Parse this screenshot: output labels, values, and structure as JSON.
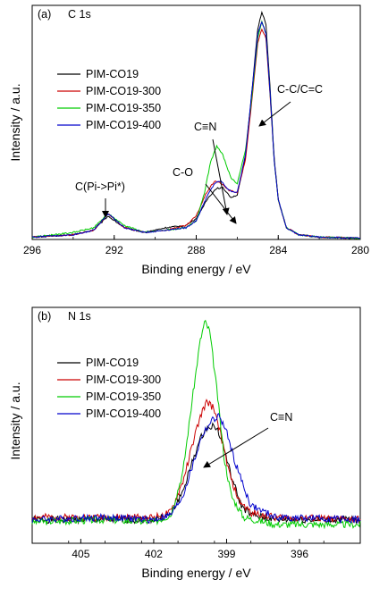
{
  "chart_data": [
    {
      "type": "line",
      "panel_label": "(a)",
      "title": "C 1s",
      "xlabel": "Binding energy / eV",
      "ylabel": "Intensity / a.u.",
      "xlim": [
        296,
        280
      ],
      "x_reversed": true,
      "yticks_shown": false,
      "ylim": [
        0,
        1
      ],
      "x_ticks": [
        296,
        292,
        288,
        284,
        280
      ],
      "x_tick_labels": [
        "296",
        "292",
        "288",
        "284",
        "280"
      ],
      "legend": {
        "position": "upper-left"
      },
      "series": [
        {
          "name": "PIM-CO19",
          "color": "#000000",
          "points": [
            [
              296,
              0.01
            ],
            [
              294,
              0.02
            ],
            [
              293,
              0.04
            ],
            [
              292.3,
              0.1
            ],
            [
              291.5,
              0.05
            ],
            [
              290.5,
              0.03
            ],
            [
              289.5,
              0.05
            ],
            [
              288.5,
              0.06
            ],
            [
              288,
              0.09
            ],
            [
              287.4,
              0.18
            ],
            [
              287,
              0.22
            ],
            [
              286.7,
              0.22
            ],
            [
              286.3,
              0.18
            ],
            [
              286,
              0.19
            ],
            [
              285.6,
              0.35
            ],
            [
              285.3,
              0.62
            ],
            [
              285,
              0.9
            ],
            [
              284.8,
              0.97
            ],
            [
              284.6,
              0.92
            ],
            [
              284.4,
              0.65
            ],
            [
              284.2,
              0.35
            ],
            [
              284,
              0.17
            ],
            [
              283.6,
              0.05
            ],
            [
              283,
              0.02
            ],
            [
              282,
              0.01
            ],
            [
              280,
              0.005
            ]
          ]
        },
        {
          "name": "PIM-CO19-300",
          "color": "#cc0000",
          "points": [
            [
              296,
              0.01
            ],
            [
              294,
              0.02
            ],
            [
              293,
              0.04
            ],
            [
              292.3,
              0.11
            ],
            [
              291.5,
              0.05
            ],
            [
              290.5,
              0.03
            ],
            [
              289.5,
              0.04
            ],
            [
              288.5,
              0.06
            ],
            [
              288,
              0.1
            ],
            [
              287.5,
              0.2
            ],
            [
              287.1,
              0.25
            ],
            [
              286.8,
              0.24
            ],
            [
              286.4,
              0.21
            ],
            [
              286,
              0.2
            ],
            [
              285.6,
              0.34
            ],
            [
              285.3,
              0.58
            ],
            [
              285,
              0.84
            ],
            [
              284.8,
              0.9
            ],
            [
              284.6,
              0.86
            ],
            [
              284.4,
              0.62
            ],
            [
              284.2,
              0.34
            ],
            [
              284,
              0.17
            ],
            [
              283.6,
              0.05
            ],
            [
              283,
              0.02
            ],
            [
              282,
              0.01
            ],
            [
              280,
              0.005
            ]
          ]
        },
        {
          "name": "PIM-CO19-350",
          "color": "#00cc00",
          "points": [
            [
              296,
              0.01
            ],
            [
              294,
              0.03
            ],
            [
              293,
              0.05
            ],
            [
              292.3,
              0.11
            ],
            [
              291.5,
              0.06
            ],
            [
              290.5,
              0.03
            ],
            [
              289.5,
              0.04
            ],
            [
              288.5,
              0.05
            ],
            [
              288,
              0.08
            ],
            [
              287.6,
              0.2
            ],
            [
              287.3,
              0.33
            ],
            [
              287,
              0.4
            ],
            [
              286.7,
              0.36
            ],
            [
              286.3,
              0.26
            ],
            [
              286,
              0.24
            ],
            [
              285.6,
              0.38
            ],
            [
              285.3,
              0.6
            ],
            [
              285,
              0.86
            ],
            [
              284.8,
              0.93
            ],
            [
              284.6,
              0.88
            ],
            [
              284.4,
              0.63
            ],
            [
              284.2,
              0.34
            ],
            [
              284,
              0.17
            ],
            [
              283.6,
              0.05
            ],
            [
              283,
              0.02
            ],
            [
              282,
              0.01
            ],
            [
              280,
              0.005
            ]
          ]
        },
        {
          "name": "PIM-CO19-400",
          "color": "#0000cc",
          "points": [
            [
              296,
              0.01
            ],
            [
              294,
              0.02
            ],
            [
              293,
              0.04
            ],
            [
              292.3,
              0.11
            ],
            [
              291.5,
              0.05
            ],
            [
              290.5,
              0.03
            ],
            [
              289.5,
              0.04
            ],
            [
              288.5,
              0.05
            ],
            [
              288,
              0.08
            ],
            [
              287.5,
              0.18
            ],
            [
              287.1,
              0.24
            ],
            [
              286.8,
              0.25
            ],
            [
              286.4,
              0.21
            ],
            [
              286,
              0.2
            ],
            [
              285.6,
              0.36
            ],
            [
              285.3,
              0.62
            ],
            [
              285,
              0.88
            ],
            [
              284.8,
              0.93
            ],
            [
              284.6,
              0.88
            ],
            [
              284.4,
              0.63
            ],
            [
              284.2,
              0.34
            ],
            [
              284,
              0.17
            ],
            [
              283.6,
              0.05
            ],
            [
              283,
              0.02
            ],
            [
              282,
              0.01
            ],
            [
              280,
              0.005
            ]
          ]
        }
      ],
      "annotations": [
        {
          "text": "C(Pi->Pi*)",
          "x": 292.3,
          "y": 0.1
        },
        {
          "text": "C-O",
          "x": 286.7,
          "y": 0.1
        },
        {
          "text": "C≡N",
          "x": 286.0,
          "y": 0.12
        },
        {
          "text": "C-C/C=C",
          "x": 284.6,
          "y": 0.55
        }
      ]
    },
    {
      "type": "line",
      "panel_label": "(b)",
      "title": "N 1s",
      "xlabel": "Binding energy / eV",
      "ylabel": "Intensity / a.u.",
      "xlim": [
        407,
        393.5
      ],
      "x_reversed": true,
      "yticks_shown": false,
      "ylim": [
        0,
        1
      ],
      "x_ticks": [
        405,
        402,
        399,
        396
      ],
      "x_tick_labels": [
        "405",
        "402",
        "399",
        "396"
      ],
      "legend": {
        "position": "upper-left"
      },
      "series": [
        {
          "name": "PIM-CO19",
          "color": "#000000",
          "points": [
            [
              407,
              0.1
            ],
            [
              404,
              0.1
            ],
            [
              402,
              0.1
            ],
            [
              401.3,
              0.12
            ],
            [
              400.8,
              0.22
            ],
            [
              400.3,
              0.38
            ],
            [
              400,
              0.46
            ],
            [
              399.7,
              0.5
            ],
            [
              399.4,
              0.49
            ],
            [
              399.1,
              0.4
            ],
            [
              398.8,
              0.28
            ],
            [
              398.4,
              0.16
            ],
            [
              398,
              0.12
            ],
            [
              397,
              0.1
            ],
            [
              393.5,
              0.1
            ]
          ]
        },
        {
          "name": "PIM-CO19-300",
          "color": "#cc0000",
          "points": [
            [
              407,
              0.11
            ],
            [
              404,
              0.11
            ],
            [
              402,
              0.11
            ],
            [
              401.3,
              0.13
            ],
            [
              400.8,
              0.26
            ],
            [
              400.3,
              0.46
            ],
            [
              400,
              0.56
            ],
            [
              399.8,
              0.6
            ],
            [
              399.5,
              0.57
            ],
            [
              399.2,
              0.44
            ],
            [
              398.9,
              0.3
            ],
            [
              398.5,
              0.18
            ],
            [
              398,
              0.13
            ],
            [
              397,
              0.11
            ],
            [
              393.5,
              0.1
            ]
          ]
        },
        {
          "name": "PIM-CO19-350",
          "color": "#00cc00",
          "points": [
            [
              407,
              0.09
            ],
            [
              404,
              0.1
            ],
            [
              402,
              0.09
            ],
            [
              401.3,
              0.12
            ],
            [
              400.8,
              0.3
            ],
            [
              400.4,
              0.62
            ],
            [
              400.1,
              0.85
            ],
            [
              399.9,
              0.94
            ],
            [
              399.7,
              0.9
            ],
            [
              399.4,
              0.65
            ],
            [
              399.1,
              0.36
            ],
            [
              398.8,
              0.2
            ],
            [
              398.3,
              0.11
            ],
            [
              397,
              0.08
            ],
            [
              393.5,
              0.08
            ]
          ]
        },
        {
          "name": "PIM-CO19-400",
          "color": "#0000cc",
          "points": [
            [
              407,
              0.1
            ],
            [
              404,
              0.11
            ],
            [
              402,
              0.1
            ],
            [
              401.3,
              0.12
            ],
            [
              400.8,
              0.2
            ],
            [
              400.3,
              0.36
            ],
            [
              400,
              0.46
            ],
            [
              399.6,
              0.52
            ],
            [
              399.3,
              0.54
            ],
            [
              399,
              0.47
            ],
            [
              398.7,
              0.36
            ],
            [
              398.3,
              0.24
            ],
            [
              398,
              0.16
            ],
            [
              397,
              0.11
            ],
            [
              393.5,
              0.1
            ]
          ]
        }
      ],
      "annotations": [
        {
          "text": "C≡N",
          "x": 399.4,
          "y": 0.4
        }
      ]
    }
  ]
}
